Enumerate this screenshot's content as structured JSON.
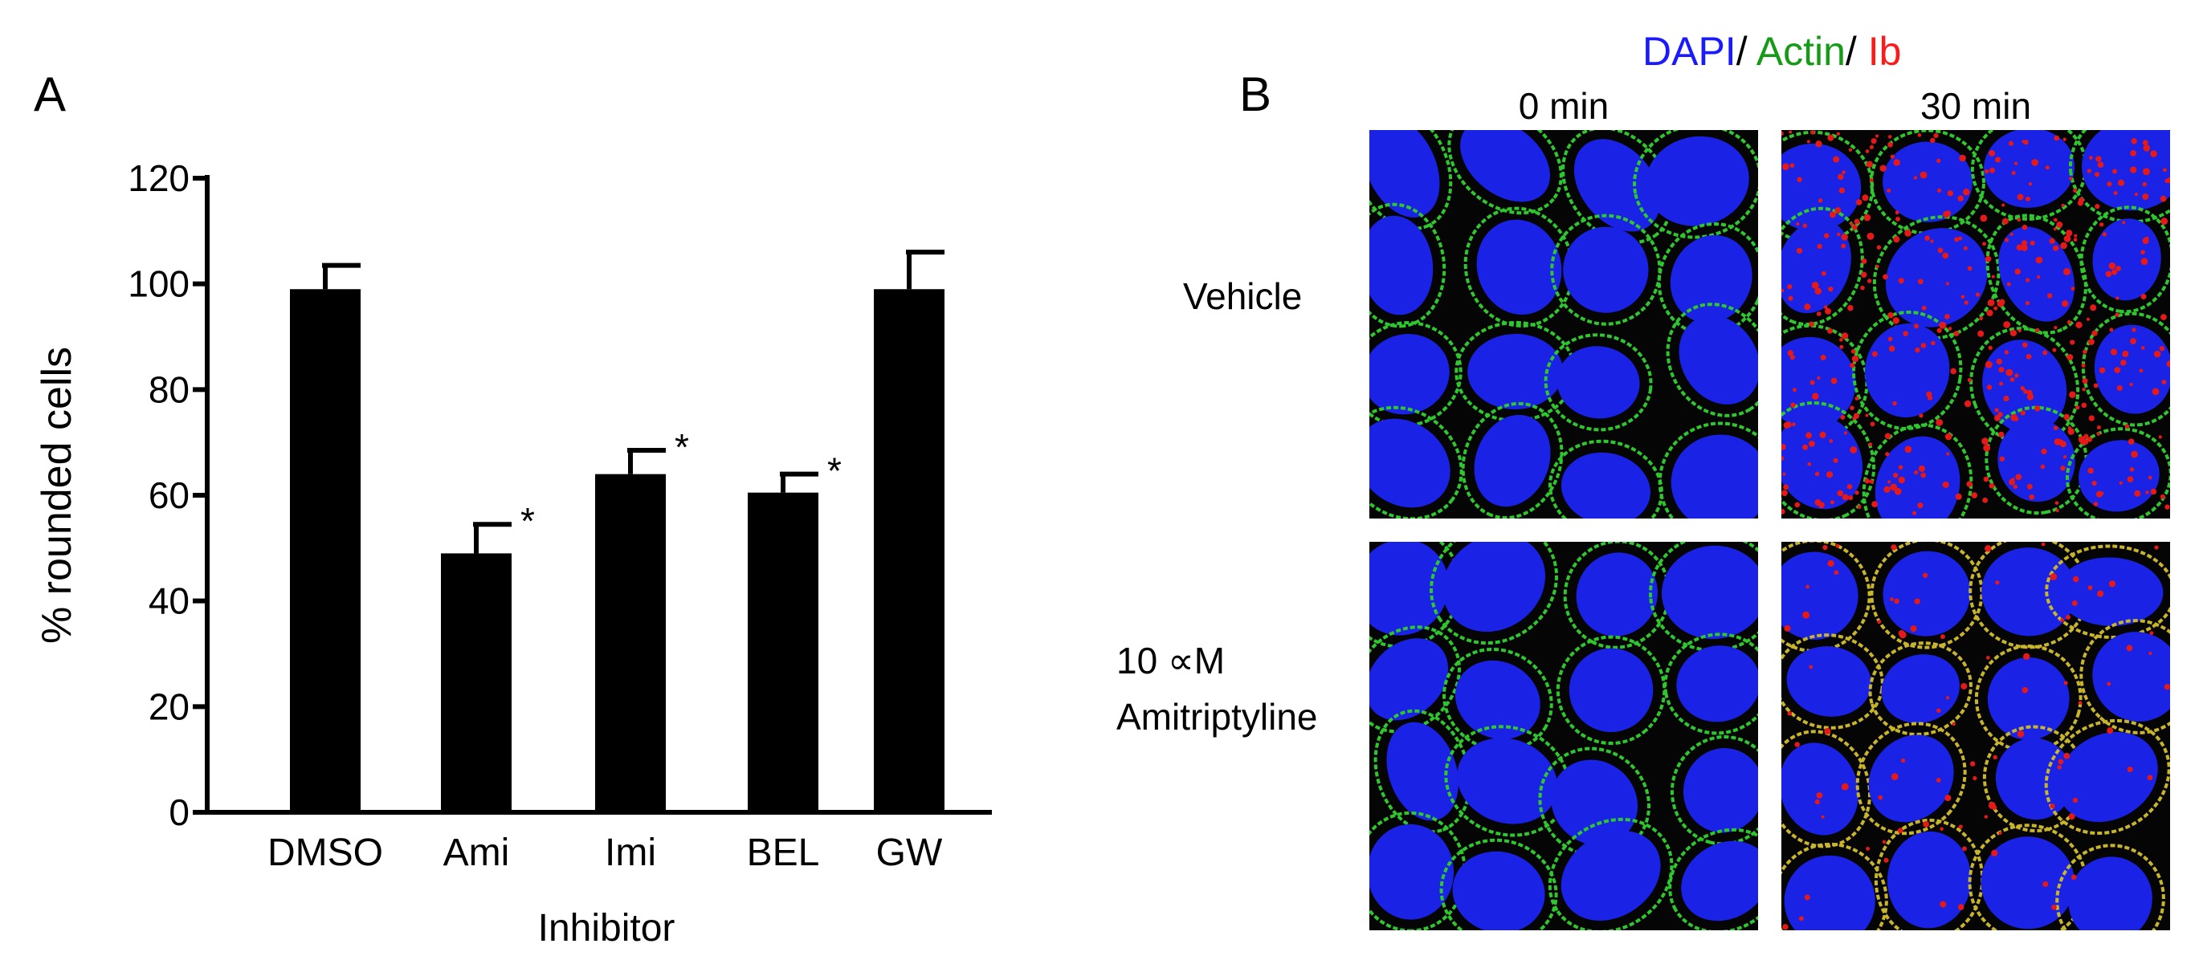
{
  "panel_a": {
    "label": "A",
    "chart_data": {
      "type": "bar",
      "categories": [
        "DMSO",
        "Ami",
        "Imi",
        "BEL",
        "GW"
      ],
      "values": [
        99,
        49,
        64,
        60.5,
        99
      ],
      "errors": [
        4.5,
        5.5,
        4.5,
        3.5,
        7
      ],
      "significance": [
        "",
        "*",
        "*",
        "*",
        ""
      ],
      "xlabel": "Inhibitor",
      "ylabel": "% rounded cells",
      "ylim": [
        0,
        120
      ],
      "yticks": [
        "0",
        "20",
        "40",
        "60",
        "80",
        "100",
        "120"
      ],
      "bar_color": "#000000",
      "grid": false
    }
  },
  "panel_b": {
    "label": "B",
    "legend": {
      "dapi": {
        "text": "DAPI",
        "color": "#1a1aff"
      },
      "sep1": "/ ",
      "actin": {
        "text": "Actin",
        "color": "#169b16"
      },
      "sep2": "/ ",
      "ib": {
        "text": "Ib",
        "color": "#ff1a1a"
      }
    },
    "columns": [
      "0 min",
      "30 min"
    ],
    "rows": [
      "Vehicle",
      "10 ∝M",
      "Amitriptyline"
    ],
    "image_colors": {
      "nucleus": "#1a22e6",
      "actin": "#2ec82e",
      "ib": "#e61919",
      "background": "#050505"
    }
  }
}
